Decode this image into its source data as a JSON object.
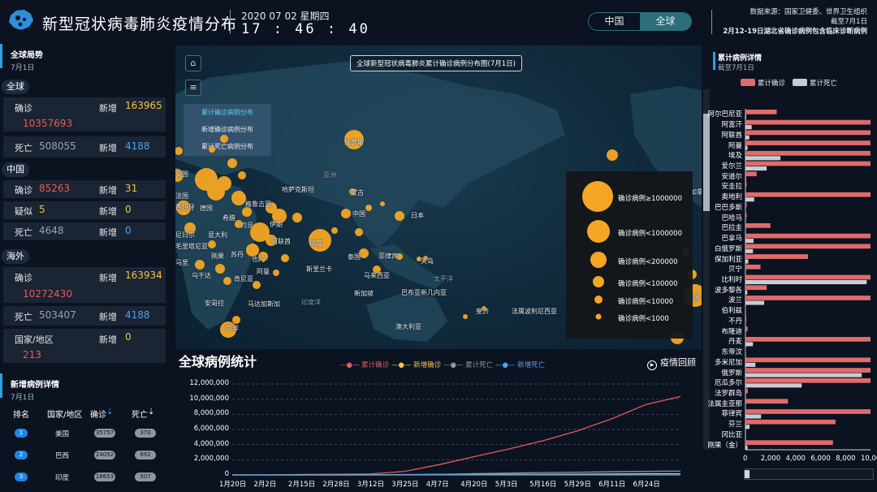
{
  "header": {
    "title": "新型冠状病毒肺炎疫情分布",
    "date": "2020 07 02 星期四",
    "time": "17 : 46 : 40",
    "region_tabs": [
      "中国",
      "全球"
    ],
    "active_tab": "全球",
    "source_line1": "数据来源：国家卫健委、世界卫生组织",
    "source_line2": "截至7月1日",
    "source_line3": "2月12-19日湖北省确诊病例包含临床诊断病例"
  },
  "global": {
    "title": "全球局势",
    "date": "7月1日",
    "world_label": "全球",
    "confirmed_label": "确诊",
    "confirmed": "10357693",
    "new_label": "新增",
    "new_confirmed": "163965",
    "death_label": "死亡",
    "deaths": "508055",
    "new_deaths": "4188"
  },
  "china": {
    "label": "中国",
    "confirmed_label": "确诊",
    "confirmed": "85263",
    "new_confirmed": "31",
    "suspect_label": "疑似",
    "suspect": "5",
    "new_suspect": "0",
    "death_label": "死亡",
    "deaths": "4648",
    "new_deaths": "0",
    "new_label": "新增"
  },
  "overseas": {
    "label": "海外",
    "confirmed_label": "确诊",
    "confirmed": "10272430",
    "new_confirmed": "163934",
    "death_label": "死亡",
    "deaths": "503407",
    "new_deaths": "4188",
    "countries_label": "国家/地区",
    "countries": "213",
    "new_countries": "0",
    "new_label": "新增"
  },
  "ranking": {
    "title": "新增病例详情",
    "date": "7月1日",
    "headers": [
      "排名",
      "国家/地区",
      "确诊",
      "死亡"
    ],
    "rows": [
      {
        "rank": "1",
        "name": "美国",
        "confirmed": "35757",
        "deaths": "370"
      },
      {
        "rank": "2",
        "name": "巴西",
        "confirmed": "24052",
        "deaths": "692"
      },
      {
        "rank": "3",
        "name": "印度",
        "confirmed": "18653",
        "deaths": "507"
      }
    ]
  },
  "map": {
    "title": "全球新型冠状病毒肺炎累计确诊病例分布图(7月1日)",
    "menu": [
      "累计确诊病例分布",
      "新增确诊病例分布",
      "累计死亡病例分布"
    ],
    "labels": [
      "俄罗斯",
      "英国",
      "德国",
      "亚洲",
      "哈萨克斯坦",
      "蒙古",
      "中国",
      "日本",
      "格鲁吉亚",
      "西班牙",
      "意大利",
      "希腊",
      "约旦",
      "伊朗",
      "阿联酋",
      "印度",
      "泰国",
      "菲律宾",
      "关岛",
      "阿曼",
      "斯里兰卡",
      "马来西亚",
      "新加坡",
      "巴布亚新几内亚",
      "澳大利亚",
      "斐济",
      "法属波利尼西亚",
      "印度洋",
      "太平洋",
      "安哥拉",
      "马达加斯加",
      "南非",
      "刚果",
      "也门",
      "毛里塔尼亚",
      "马里",
      "肯尼亚",
      "乌干达",
      "苏丹",
      "尼日尔",
      "法国",
      "美国",
      "加拿大"
    ],
    "legend": [
      "确诊病例≥1000000",
      "确诊病例<1000000",
      "确诊病例<200000",
      "确诊病例<100000",
      "确诊病例<10000",
      "确诊病例<1000"
    ]
  },
  "trend": {
    "title": "全球病例统计",
    "replay_label": "疫情回顾",
    "series_names": [
      "累计确诊",
      "新增确诊",
      "累计死亡",
      "新增死亡"
    ],
    "colors": {
      "confirmed": "#e85a5a",
      "new_confirmed": "#f5c342",
      "deaths": "#8e96a2",
      "new_deaths": "#4aa3f0"
    }
  },
  "details": {
    "title": "累计病例详情",
    "date": "截至7月1日",
    "legend": [
      "累计确诊",
      "累计死亡"
    ],
    "countries": [
      "阿尔巴尼亚",
      "阿富汗",
      "阿联酋",
      "阿曼",
      "埃及",
      "爱尔兰",
      "安道尔",
      "安圭拉",
      "奥地利",
      "巴巴多斯",
      "巴哈马",
      "巴拉圭",
      "巴拿马",
      "白俄罗斯",
      "保加利亚",
      "贝宁",
      "比利时",
      "波多黎各",
      "波兰",
      "伯利兹",
      "不丹",
      "布隆迪",
      "丹麦",
      "东帝汶",
      "多米尼加",
      "俄罗斯",
      "厄瓜多尔",
      "法罗群岛",
      "法属圭亚那",
      "菲律宾",
      "芬兰",
      "冈比亚",
      "刚果（金）"
    ]
  },
  "chart_data": [
    {
      "type": "line",
      "title": "全球病例统计",
      "x": [
        "1月20日",
        "2月2日",
        "2月15日",
        "2月28日",
        "3月12日",
        "3月25日",
        "4月7日",
        "4月20日",
        "5月3日",
        "5月16日",
        "5月29日",
        "6月11日",
        "6月24日",
        "7月1日"
      ],
      "series": [
        {
          "name": "累计确诊",
          "values": [
            300,
            17000,
            68000,
            86000,
            128000,
            470000,
            1360000,
            2400000,
            3400000,
            4500000,
            5800000,
            7400000,
            9300000,
            10357693
          ]
        },
        {
          "name": "新增确诊",
          "values": [
            0,
            3000,
            2000,
            1500,
            8000,
            45000,
            75000,
            80000,
            80000,
            95000,
            110000,
            130000,
            165000,
            163965
          ]
        },
        {
          "name": "累计死亡",
          "values": [
            6,
            360,
            1660,
            2900,
            4700,
            21000,
            82000,
            170000,
            245000,
            310000,
            365000,
            420000,
            480000,
            508055
          ]
        },
        {
          "name": "新增死亡",
          "values": [
            0,
            50,
            100,
            50,
            400,
            2500,
            7000,
            7500,
            5000,
            4500,
            4500,
            4500,
            5000,
            4188
          ]
        }
      ],
      "y_ticks": [
        "0",
        "2,000,000",
        "4,000,000",
        "6,000,000",
        "8,000,000",
        "10,000,000",
        "12,000,000"
      ],
      "ylim": [
        0,
        12000000
      ],
      "grid": true,
      "legend": "top"
    },
    {
      "type": "bar",
      "orientation": "horizontal",
      "title": "累计病例详情",
      "categories": [
        "阿尔巴尼亚",
        "阿富汗",
        "阿联酋",
        "阿曼",
        "埃及",
        "爱尔兰",
        "安道尔",
        "安圭拉",
        "奥地利",
        "巴巴多斯",
        "巴哈马",
        "巴拉圭",
        "巴拿马",
        "白俄罗斯",
        "保加利亚",
        "贝宁",
        "比利时",
        "波多黎各",
        "波兰",
        "伯利兹",
        "不丹",
        "布隆迪",
        "丹麦",
        "东帝汶",
        "多米尼加",
        "俄罗斯",
        "厄瓜多尔",
        "法罗群岛",
        "法属圭亚那",
        "菲律宾",
        "芬兰",
        "冈比亚",
        "刚果（金）"
      ],
      "series": [
        {
          "name": "累计确诊",
          "values": [
            2500,
            10000,
            10000,
            10000,
            10000,
            10000,
            900,
            100,
            10000,
            100,
            100,
            2000,
            10000,
            10000,
            5000,
            1200,
            10000,
            1700,
            10000,
            25,
            80,
            170,
            10000,
            25,
            10000,
            10000,
            10000,
            190,
            3400,
            10000,
            7200,
            55,
            7000
          ]
        },
        {
          "name": "累计死亡",
          "values": [
            60,
            500,
            310,
            170,
            2800,
            1700,
            52,
            0,
            700,
            7,
            11,
            20,
            650,
            600,
            230,
            20,
            9700,
            150,
            1500,
            2,
            0,
            1,
            600,
            0,
            800,
            9300,
            4500,
            0,
            15,
            1250,
            330,
            2,
            165
          ]
        }
      ],
      "x_ticks": [
        "0",
        "2,000",
        "4,000",
        "6,000",
        "8,000",
        "10,000"
      ],
      "xlim": [
        0,
        10000
      ]
    }
  ]
}
